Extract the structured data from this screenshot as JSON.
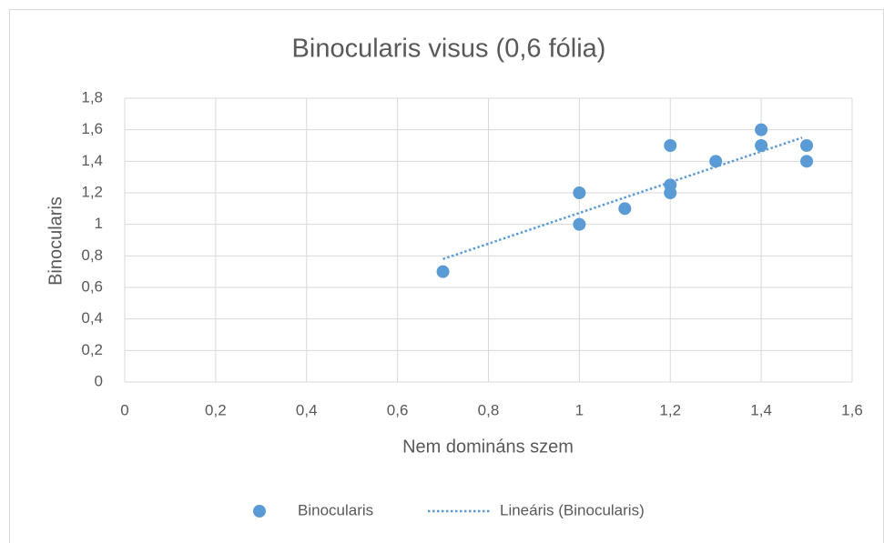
{
  "chart_data": {
    "type": "scatter",
    "title": "Binocularis visus (0,6 fólia)",
    "x_label": "Nem domináns szem",
    "y_label": "Binocularis",
    "series": [
      {
        "name": "Binocularis",
        "color": "#5b9bd5",
        "x": [
          0.7,
          1,
          1,
          1.1,
          1.2,
          1.2,
          1.2,
          1.3,
          1.4,
          1.4,
          1.5,
          1.5
        ],
        "values": [
          0.7,
          1.2,
          1,
          1.1,
          1.5,
          1.25,
          1.2,
          1.4,
          1.6,
          1.5,
          1.5,
          1.4
        ]
      }
    ],
    "trendline": {
      "name": "Lineáris (Binocularis)",
      "color": "#5b9bd5",
      "x": [
        0.7,
        1.49
      ],
      "values": [
        0.78,
        1.55
      ]
    },
    "xlim": [
      0,
      1.6
    ],
    "xticks": [
      0,
      {
        "value": 0.2,
        "label": "0,2"
      },
      {
        "value": 0.4,
        "label": "0,4"
      },
      {
        "value": 0.6,
        "label": "0,6"
      },
      {
        "value": 0.8,
        "label": "0,8"
      },
      1,
      {
        "value": 1.2,
        "label": "1,2"
      },
      {
        "value": 1.4,
        "label": "1,4"
      },
      {
        "value": 1.6,
        "label": "1,6"
      }
    ],
    "ylim": [
      0,
      1.8
    ],
    "yticks": [
      0,
      {
        "value": 0.2,
        "label": "0,2"
      },
      {
        "value": 0.4,
        "label": "0,4"
      },
      {
        "value": 0.6,
        "label": "0,6"
      },
      {
        "value": 0.8,
        "label": "0,8"
      },
      1,
      {
        "value": 1.2,
        "label": "1,2"
      },
      {
        "value": 1.4,
        "label": "1,4"
      },
      {
        "value": 1.6,
        "label": "1,6"
      },
      {
        "value": 1.8,
        "label": "1,8"
      }
    ],
    "grid": true,
    "legend": "bottom"
  }
}
